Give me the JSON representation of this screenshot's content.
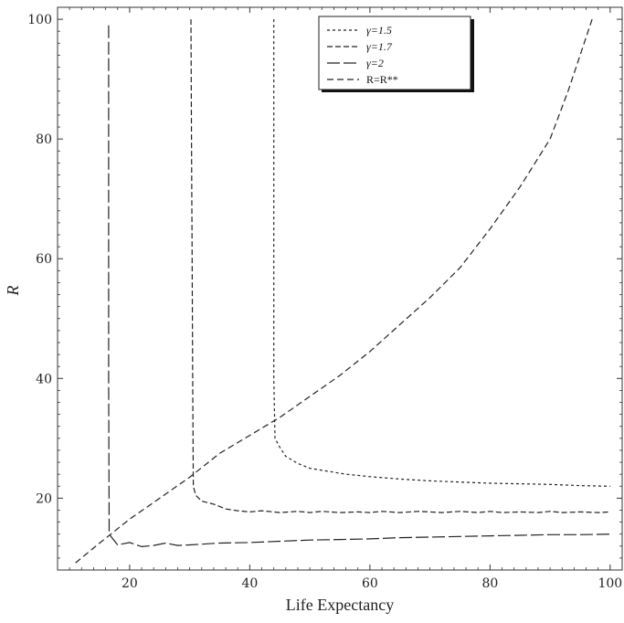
{
  "chart_data": {
    "type": "line",
    "title": "",
    "xlabel": "Life Expectancy",
    "ylabel": "R",
    "xlim": [
      8,
      102
    ],
    "ylim": [
      8,
      102
    ],
    "xticks": [
      20,
      40,
      60,
      80,
      100
    ],
    "yticks": [
      20,
      40,
      60,
      80,
      100
    ],
    "grid": false,
    "legend_position": "top-center",
    "series": [
      {
        "name": "γ=1.5",
        "dash": "3,3",
        "x": [
          44,
          44,
          44,
          44,
          44.2,
          45,
          46,
          48,
          50,
          53,
          56,
          60,
          65,
          70,
          75,
          80,
          85,
          90,
          95,
          100
        ],
        "y": [
          100,
          80,
          60,
          40,
          30,
          28.5,
          27,
          25.8,
          25,
          24.5,
          24,
          23.6,
          23.2,
          22.9,
          22.7,
          22.5,
          22.4,
          22.3,
          22.1,
          22
        ]
      },
      {
        "name": "γ=1.7",
        "dash": "6,3",
        "x": [
          30.2,
          30.3,
          30.4,
          30.5,
          30.6,
          31,
          32,
          34,
          36,
          38,
          40,
          42,
          45,
          48,
          50,
          52,
          55,
          58,
          60,
          62,
          65,
          68,
          70,
          72,
          75,
          78,
          80,
          82,
          85,
          88,
          90,
          92,
          95,
          98,
          100
        ],
        "y": [
          100,
          80,
          60,
          40,
          22,
          20.5,
          19.5,
          19,
          18.2,
          17.9,
          17.7,
          17.9,
          17.6,
          17.8,
          17.6,
          17.8,
          17.6,
          17.7,
          17.6,
          17.8,
          17.6,
          17.8,
          17.7,
          17.6,
          17.8,
          17.6,
          17.8,
          17.6,
          17.7,
          17.6,
          17.8,
          17.6,
          17.7,
          17.6,
          17.7
        ]
      },
      {
        "name": "γ=2",
        "dash": "14,4",
        "x": [
          16.5,
          16.5,
          16.5,
          16.5,
          16.6,
          18,
          20,
          22,
          24,
          26,
          28,
          30,
          35,
          40,
          45,
          50,
          55,
          60,
          65,
          70,
          75,
          80,
          85,
          90,
          95,
          100
        ],
        "y": [
          99,
          80,
          60,
          40,
          14,
          12.2,
          12.6,
          11.9,
          12.1,
          12.5,
          12.1,
          12.2,
          12.5,
          12.6,
          12.8,
          13,
          13.1,
          13.2,
          13.4,
          13.5,
          13.6,
          13.7,
          13.8,
          13.9,
          13.9,
          14
        ]
      },
      {
        "name": "R=R**",
        "dash": "7,4",
        "x": [
          11,
          15,
          20,
          25,
          30,
          35,
          40,
          45,
          50,
          55,
          60,
          65,
          70,
          75,
          80,
          85,
          90,
          93,
          95,
          97
        ],
        "y": [
          9.2,
          12.5,
          16.5,
          20,
          23.5,
          27.5,
          30.5,
          33.5,
          37,
          40.5,
          44.5,
          49,
          53.5,
          58.5,
          65,
          72,
          80,
          88,
          94,
          100
        ]
      }
    ]
  },
  "legend": {
    "items": [
      {
        "label": "γ=1.5",
        "dash": "3,3"
      },
      {
        "label": "γ=1.7",
        "dash": "6,3"
      },
      {
        "label": "γ=2",
        "dash": "14,4"
      },
      {
        "label": "R=R**",
        "dash": "7,4"
      }
    ]
  },
  "colors": {
    "line": "#222222",
    "axis": "#333333"
  }
}
